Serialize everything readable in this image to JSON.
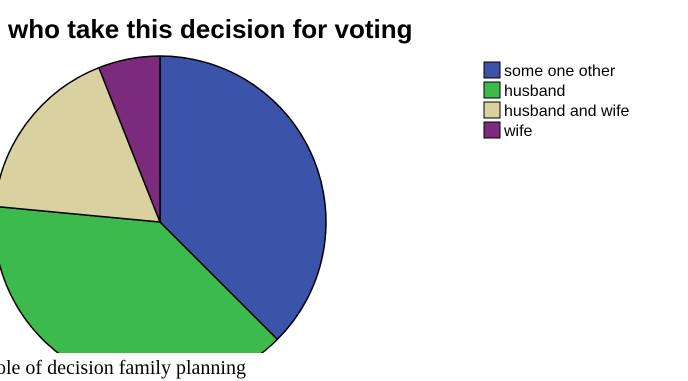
{
  "chart_data": {
    "type": "pie",
    "title": "who  take this decision for voting",
    "categories": [
      "some one other",
      "husband",
      "husband and wife",
      "wife"
    ],
    "values": [
      37.5,
      39.0,
      17.5,
      6.0
    ],
    "colors": [
      "#3b53a8",
      "#3dba4c",
      "#d9d2a0",
      "#7b2a7d"
    ],
    "legend_position": "top-right",
    "grid": false
  },
  "caption": "ole of decision family planning"
}
